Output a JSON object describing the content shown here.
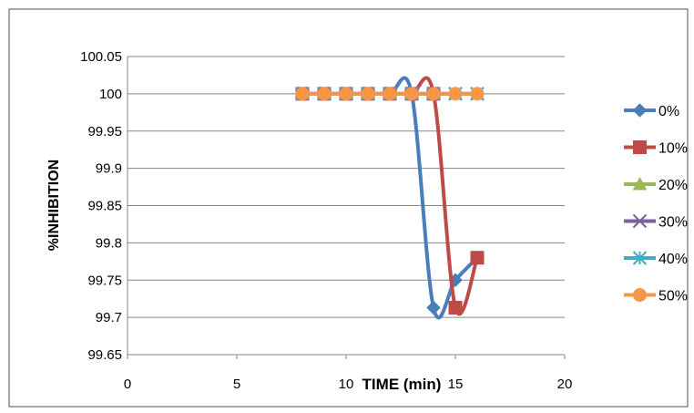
{
  "chart_data": {
    "type": "line",
    "title": "",
    "xlabel": "TIME (min)",
    "ylabel": "%INHIBITION",
    "xlim": [
      0,
      20
    ],
    "ylim": [
      99.65,
      100.05
    ],
    "x_ticks": [
      0,
      5,
      10,
      15,
      20
    ],
    "y_ticks": [
      99.65,
      99.7,
      99.75,
      99.8,
      99.85,
      99.9,
      99.95,
      100,
      100.05
    ],
    "x_tick_labels": [
      "0",
      "5",
      "10",
      "15",
      "20"
    ],
    "y_tick_labels": [
      "99.65",
      "99.7",
      "99.75",
      "99.8",
      "99.85",
      "99.9",
      "99.95",
      "100",
      "100.05"
    ],
    "grid": "horizontal",
    "legend_position": "right",
    "series": [
      {
        "name": "0%",
        "color": "#4a7ebb",
        "marker": "diamond",
        "x": [
          8,
          9,
          10,
          11,
          12,
          13,
          14,
          15,
          16
        ],
        "y": [
          100,
          100,
          100,
          100,
          100,
          100,
          99.713,
          99.75,
          99.78
        ]
      },
      {
        "name": "10%",
        "color": "#be4b48",
        "marker": "square",
        "x": [
          8,
          9,
          10,
          11,
          12,
          13,
          14,
          15,
          16
        ],
        "y": [
          100,
          100,
          100,
          100,
          100,
          100,
          100,
          99.713,
          99.78
        ]
      },
      {
        "name": "20%",
        "color": "#98b954",
        "marker": "triangle",
        "x": [
          8,
          9,
          10,
          11,
          12,
          13,
          14,
          15,
          16
        ],
        "y": [
          100,
          100,
          100,
          100,
          100,
          100,
          100,
          100,
          100
        ]
      },
      {
        "name": "30%",
        "color": "#7d60a0",
        "marker": "x",
        "x": [
          8,
          9,
          10,
          11,
          12,
          13,
          14,
          15,
          16
        ],
        "y": [
          100,
          100,
          100,
          100,
          100,
          100,
          100,
          100,
          100
        ]
      },
      {
        "name": "40%",
        "color": "#46aac5",
        "marker": "star",
        "x": [
          8,
          9,
          10,
          11,
          12,
          13,
          14,
          15,
          16
        ],
        "y": [
          100,
          100,
          100,
          100,
          100,
          100,
          100,
          100,
          100
        ]
      },
      {
        "name": "50%",
        "color": "#f79646",
        "marker": "circle",
        "x": [
          8,
          9,
          10,
          11,
          12,
          13,
          14,
          15,
          16
        ],
        "y": [
          100,
          100,
          100,
          100,
          100,
          100,
          100,
          100,
          100
        ]
      }
    ]
  }
}
